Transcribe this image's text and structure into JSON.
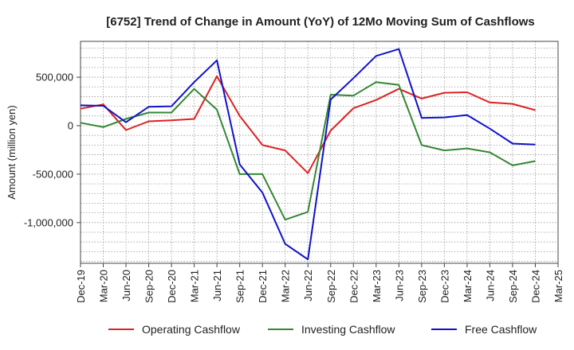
{
  "chart_data": {
    "type": "line",
    "title": "[6752]  Trend of Change in Amount (YoY) of 12Mo Moving Sum of Cashflows",
    "xlabel": "",
    "ylabel": "Amount (million yen)",
    "ylim": [
      -1420000,
      870000
    ],
    "yticks": [
      500000,
      0,
      -500000,
      -1000000
    ],
    "ytick_labels": [
      "500,000",
      "0",
      "-500,000",
      "-1,000,000"
    ],
    "categories": [
      "Dec-19",
      "Mar-20",
      "Jun-20",
      "Sep-20",
      "Dec-20",
      "Mar-21",
      "Jun-21",
      "Sep-21",
      "Dec-21",
      "Mar-22",
      "Jun-22",
      "Sep-22",
      "Dec-22",
      "Mar-23",
      "Jun-23",
      "Sep-23",
      "Dec-23",
      "Mar-24",
      "Jun-24",
      "Sep-24",
      "Dec-24",
      "Mar-25"
    ],
    "grid": true,
    "legend_position": "bottom",
    "series": [
      {
        "name": "Operating Cashflow",
        "color": "#dd2222",
        "values": [
          175000,
          220000,
          -45000,
          45000,
          55000,
          70000,
          510000,
          100000,
          -200000,
          -255000,
          -490000,
          -50000,
          180000,
          265000,
          380000,
          280000,
          340000,
          345000,
          240000,
          225000,
          160000,
          null
        ]
      },
      {
        "name": "Investing Cashflow",
        "color": "#338833",
        "values": [
          30000,
          -15000,
          70000,
          135000,
          135000,
          380000,
          165000,
          -500000,
          -500000,
          -970000,
          -890000,
          320000,
          310000,
          450000,
          420000,
          -200000,
          -255000,
          -235000,
          -275000,
          -410000,
          -365000,
          null
        ]
      },
      {
        "name": "Free Cashflow",
        "color": "#1111cc",
        "values": [
          210000,
          205000,
          35000,
          195000,
          200000,
          450000,
          675000,
          -400000,
          -690000,
          -1220000,
          -1380000,
          270000,
          490000,
          720000,
          790000,
          80000,
          85000,
          110000,
          -30000,
          -185000,
          -195000,
          null
        ]
      }
    ]
  }
}
